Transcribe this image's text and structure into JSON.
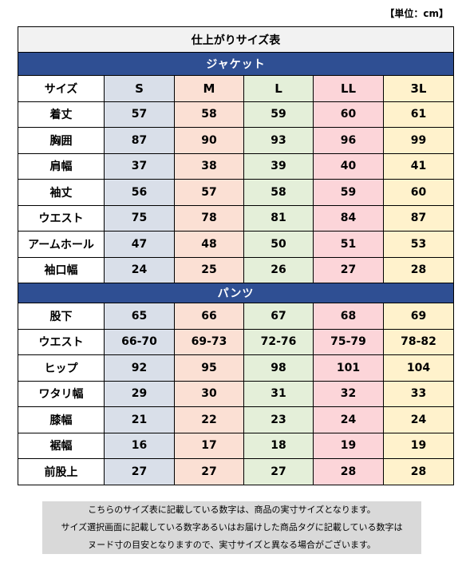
{
  "unit_label": "【単位：cm】",
  "table_title": "仕上がりサイズ表",
  "jacket": {
    "title": "ジャケット",
    "header_label": "サイズ",
    "sizes": [
      "S",
      "M",
      "L",
      "LL",
      "3L"
    ],
    "rows": [
      {
        "label": "着丈",
        "values": [
          "57",
          "58",
          "59",
          "60",
          "61"
        ]
      },
      {
        "label": "胸囲",
        "values": [
          "87",
          "90",
          "93",
          "96",
          "99"
        ]
      },
      {
        "label": "肩幅",
        "values": [
          "37",
          "38",
          "39",
          "40",
          "41"
        ]
      },
      {
        "label": "袖丈",
        "values": [
          "56",
          "57",
          "58",
          "59",
          "60"
        ]
      },
      {
        "label": "ウエスト",
        "values": [
          "75",
          "78",
          "81",
          "84",
          "87"
        ]
      },
      {
        "label": "アームホール",
        "values": [
          "47",
          "48",
          "50",
          "51",
          "53"
        ]
      },
      {
        "label": "袖口幅",
        "values": [
          "24",
          "25",
          "26",
          "27",
          "28"
        ]
      }
    ]
  },
  "pants": {
    "title": "パンツ",
    "rows": [
      {
        "label": "股下",
        "values": [
          "65",
          "66",
          "67",
          "68",
          "69"
        ]
      },
      {
        "label": "ウエスト",
        "values": [
          "66-70",
          "69-73",
          "72-76",
          "75-79",
          "78-82"
        ]
      },
      {
        "label": "ヒップ",
        "values": [
          "92",
          "95",
          "98",
          "101",
          "104"
        ]
      },
      {
        "label": "ワタリ幅",
        "values": [
          "29",
          "30",
          "31",
          "32",
          "33"
        ]
      },
      {
        "label": "膝幅",
        "values": [
          "21",
          "22",
          "23",
          "24",
          "24"
        ]
      },
      {
        "label": "裾幅",
        "values": [
          "16",
          "17",
          "18",
          "19",
          "19"
        ]
      },
      {
        "label": "前股上",
        "values": [
          "27",
          "27",
          "27",
          "28",
          "28"
        ]
      }
    ]
  },
  "note_lines": [
    "こちらのサイズ表に記載している数字は、商品の実寸サイズとなります。",
    "サイズ選択画面に記載している数字あるいはお届けした商品タグに記載している数字は",
    "ヌード寸の目安となりますので、実寸サイズと異なる場合がございます。"
  ],
  "colors": {
    "section_header": "#2f4f93",
    "S": "#d9dfe9",
    "M": "#fbe0d4",
    "L": "#e4efd9",
    "LL": "#fcd5d9",
    "3L": "#fff2cc"
  }
}
